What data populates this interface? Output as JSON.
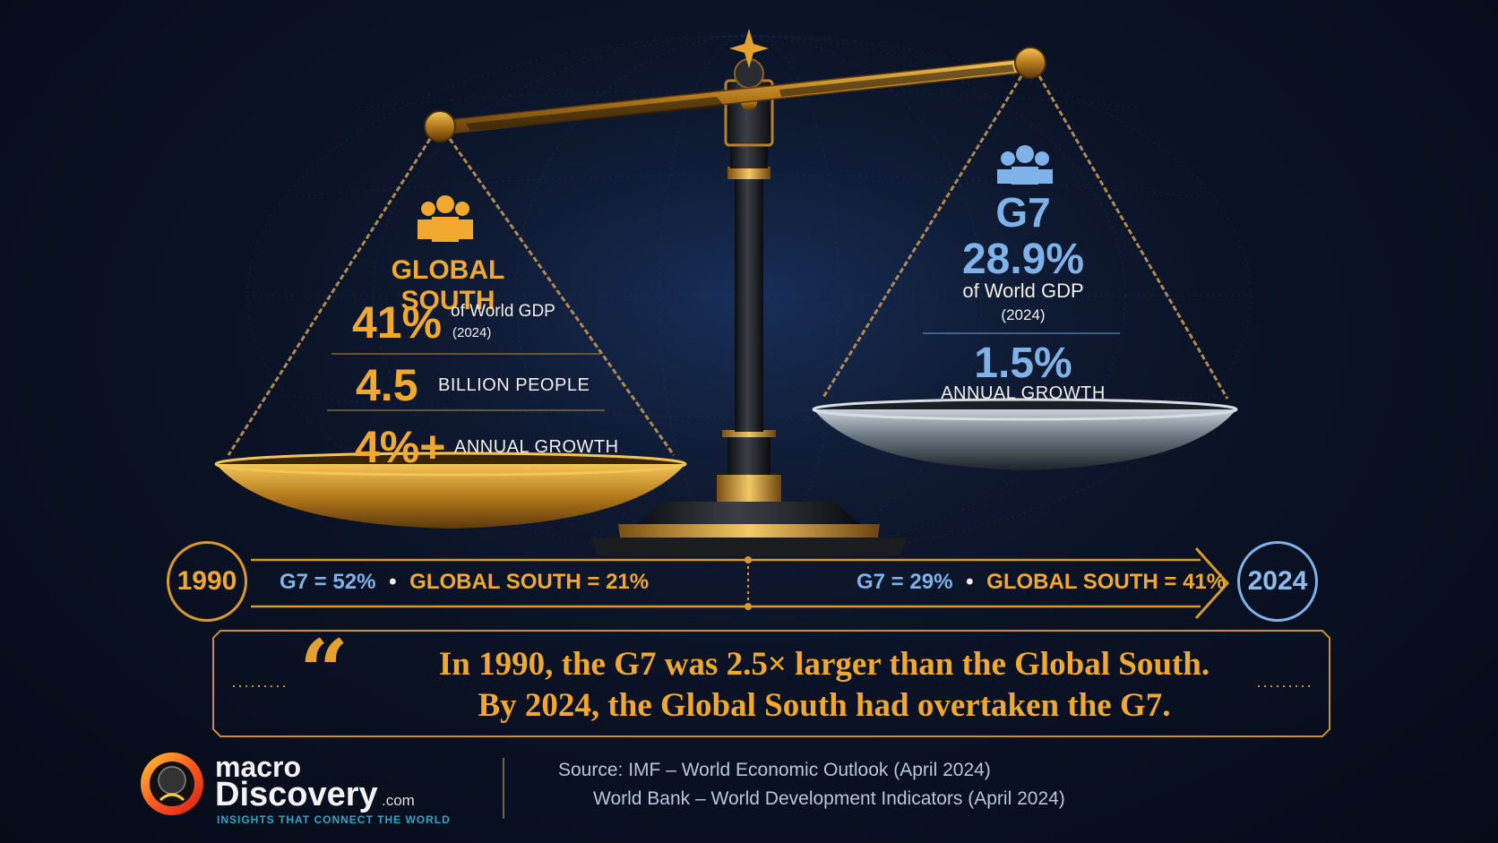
{
  "global_south": {
    "title": "GLOBAL SOUTH",
    "gdp_value": "41%",
    "gdp_label": "of World GDP",
    "gdp_year": "(2024)",
    "population_value": "4.5",
    "population_label": "BILLION PEOPLE",
    "growth_value": "4%+",
    "growth_label": "ANNUAL GROWTH",
    "icon": "people-group-icon",
    "color": "#f0a92e"
  },
  "g7": {
    "title": "G7",
    "gdp_value": "28.9%",
    "gdp_label": "of World GDP",
    "gdp_year": "(2024)",
    "growth_value": "1.5%",
    "growth_label": "ANNUAL GROWTH",
    "icon": "people-group-icon",
    "color": "#7fb2e8"
  },
  "timeline": {
    "start_year": "1990",
    "end_year": "2024",
    "start_g7": "G7 = 52%",
    "start_gs": "GLOBAL SOUTH = 21%",
    "end_g7": "G7 = 29%",
    "end_gs": "GLOBAL SOUTH = 41%",
    "separator": "•"
  },
  "quote": {
    "mark": "“",
    "line1": "In 1990, the G7 was 2.5× larger than the Global South.",
    "line2": "By 2024, the Global South had overtaken the G7."
  },
  "footer": {
    "brand_line1": "macro",
    "brand_line2": "Discovery",
    "brand_suffix": ".com",
    "tagline": "INSIGHTS THAT CONNECT THE WORLD",
    "source_line1": "Source: IMF – World Economic Outlook (April 2024)",
    "source_line2": "World Bank – World Development Indicators (April 2024)"
  }
}
